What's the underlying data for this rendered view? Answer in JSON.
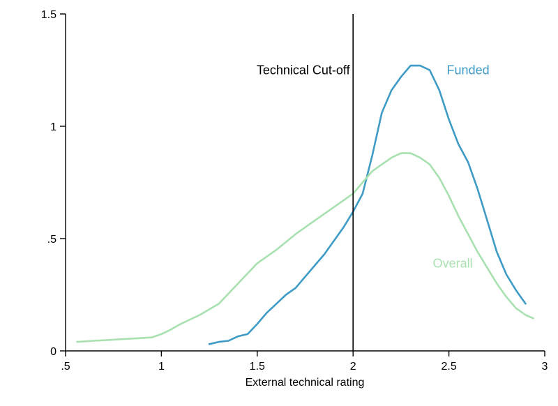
{
  "chart_data": {
    "type": "line",
    "title": "",
    "xlabel": "External technical rating",
    "ylabel": "",
    "xlim": [
      0.5,
      3
    ],
    "ylim": [
      0,
      1.5
    ],
    "x_ticks": [
      {
        "value": 0.5,
        "label": ".5"
      },
      {
        "value": 1,
        "label": "1"
      },
      {
        "value": 1.5,
        "label": "1.5"
      },
      {
        "value": 2,
        "label": "2"
      },
      {
        "value": 2.5,
        "label": "2.5"
      },
      {
        "value": 3,
        "label": "3"
      }
    ],
    "y_ticks": [
      {
        "value": 0,
        "label": "0"
      },
      {
        "value": 0.5,
        "label": ".5"
      },
      {
        "value": 1,
        "label": "1"
      },
      {
        "value": 1.5,
        "label": "1.5"
      }
    ],
    "grid": false,
    "reference_line": {
      "x": 2,
      "label": "Technical Cut-off",
      "color": "#000000"
    },
    "series": [
      {
        "name": "Funded",
        "color": "#3e9bc6",
        "x": [
          1.25,
          1.3,
          1.35,
          1.4,
          1.45,
          1.5,
          1.55,
          1.6,
          1.65,
          1.7,
          1.75,
          1.8,
          1.85,
          1.9,
          1.95,
          2.0,
          2.05,
          2.1,
          2.15,
          2.2,
          2.25,
          2.3,
          2.35,
          2.4,
          2.45,
          2.5,
          2.55,
          2.6,
          2.65,
          2.7,
          2.75,
          2.8,
          2.85,
          2.9
        ],
        "y": [
          0.03,
          0.04,
          0.045,
          0.065,
          0.075,
          0.12,
          0.17,
          0.21,
          0.25,
          0.28,
          0.33,
          0.38,
          0.43,
          0.49,
          0.55,
          0.62,
          0.7,
          0.87,
          1.06,
          1.16,
          1.22,
          1.27,
          1.27,
          1.25,
          1.16,
          1.03,
          0.92,
          0.84,
          0.72,
          0.58,
          0.44,
          0.34,
          0.27,
          0.21
        ]
      },
      {
        "name": "Overall",
        "color": "#a8e0b0",
        "x": [
          0.56,
          0.65,
          0.75,
          0.85,
          0.95,
          1.0,
          1.05,
          1.1,
          1.2,
          1.3,
          1.4,
          1.5,
          1.6,
          1.7,
          1.8,
          1.9,
          2.0,
          2.05,
          2.1,
          2.15,
          2.2,
          2.25,
          2.3,
          2.35,
          2.4,
          2.45,
          2.5,
          2.55,
          2.6,
          2.65,
          2.7,
          2.75,
          2.8,
          2.85,
          2.9,
          2.94
        ],
        "y": [
          0.04,
          0.045,
          0.05,
          0.055,
          0.06,
          0.075,
          0.095,
          0.12,
          0.16,
          0.21,
          0.3,
          0.39,
          0.45,
          0.52,
          0.58,
          0.64,
          0.7,
          0.75,
          0.8,
          0.83,
          0.86,
          0.88,
          0.88,
          0.86,
          0.83,
          0.77,
          0.69,
          0.6,
          0.52,
          0.44,
          0.37,
          0.3,
          0.24,
          0.19,
          0.16,
          0.145
        ]
      }
    ],
    "annotations": [
      {
        "text": "Technical Cut-off",
        "x": 1.74,
        "y": 1.25,
        "color": "#000000"
      },
      {
        "text": "Funded",
        "x": 2.6,
        "y": 1.25,
        "color": "#3e9bc6"
      },
      {
        "text": "Overall",
        "x": 2.52,
        "y": 0.39,
        "color": "#a8e0b0"
      }
    ]
  }
}
